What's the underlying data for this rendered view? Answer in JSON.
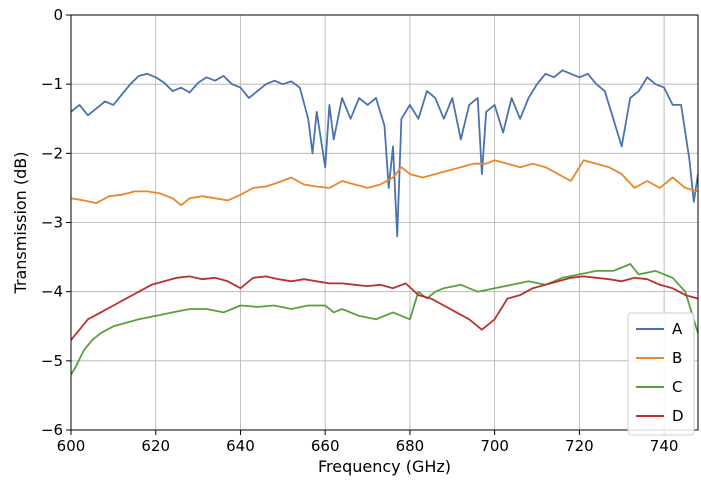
{
  "chart_data": {
    "type": "line",
    "title": "",
    "xlabel": "Frequency (GHz)",
    "ylabel": "Transmission (dB)",
    "xlim": [
      600,
      748
    ],
    "ylim": [
      -6,
      0
    ],
    "xticks": [
      600,
      620,
      640,
      660,
      680,
      700,
      720,
      740
    ],
    "yticks": [
      0,
      -1,
      -2,
      -3,
      -4,
      -5,
      -6
    ],
    "xtick_labels": [
      "600",
      "620",
      "640",
      "660",
      "680",
      "700",
      "720",
      "740"
    ],
    "ytick_labels": [
      "0",
      "−1",
      "−2",
      "−3",
      "−4",
      "−5",
      "−6"
    ],
    "grid": true,
    "legend_position": "lower-right",
    "series": [
      {
        "name": "A",
        "color": "#4a73ad",
        "x": [
          600,
          602,
          604,
          606,
          608,
          610,
          612,
          614,
          616,
          618,
          620,
          622,
          624,
          626,
          628,
          630,
          632,
          634,
          636,
          638,
          640,
          642,
          644,
          646,
          648,
          650,
          652,
          654,
          656,
          657,
          658,
          660,
          661,
          662,
          664,
          666,
          668,
          670,
          672,
          674,
          675,
          676,
          677,
          678,
          680,
          682,
          684,
          686,
          688,
          690,
          692,
          694,
          696,
          697,
          698,
          700,
          702,
          704,
          706,
          708,
          710,
          712,
          714,
          716,
          718,
          720,
          722,
          724,
          726,
          728,
          730,
          732,
          734,
          736,
          738,
          740,
          742,
          744,
          746,
          747,
          748
        ],
        "y": [
          -1.4,
          -1.3,
          -1.45,
          -1.35,
          -1.25,
          -1.3,
          -1.15,
          -1.0,
          -0.88,
          -0.85,
          -0.9,
          -0.98,
          -1.1,
          -1.05,
          -1.12,
          -0.98,
          -0.9,
          -0.95,
          -0.88,
          -1.0,
          -1.05,
          -1.2,
          -1.1,
          -1.0,
          -0.95,
          -1.0,
          -0.96,
          -1.05,
          -1.5,
          -2.0,
          -1.4,
          -2.2,
          -1.3,
          -1.8,
          -1.2,
          -1.5,
          -1.2,
          -1.3,
          -1.2,
          -1.6,
          -2.5,
          -1.9,
          -3.2,
          -1.5,
          -1.3,
          -1.5,
          -1.1,
          -1.2,
          -1.5,
          -1.2,
          -1.8,
          -1.3,
          -1.2,
          -2.3,
          -1.4,
          -1.3,
          -1.7,
          -1.2,
          -1.5,
          -1.2,
          -1.0,
          -0.85,
          -0.9,
          -0.8,
          -0.85,
          -0.9,
          -0.85,
          -1.0,
          -1.1,
          -1.5,
          -1.9,
          -1.2,
          -1.1,
          -0.9,
          -1.0,
          -1.05,
          -1.3,
          -1.3,
          -2.1,
          -2.7,
          -2.3
        ]
      },
      {
        "name": "B",
        "color": "#e8882a",
        "x": [
          600,
          603,
          606,
          609,
          612,
          615,
          618,
          621,
          624,
          626,
          628,
          631,
          634,
          637,
          640,
          643,
          646,
          649,
          652,
          655,
          658,
          661,
          664,
          667,
          670,
          673,
          676,
          678,
          680,
          683,
          686,
          689,
          692,
          695,
          698,
          700,
          703,
          706,
          709,
          712,
          715,
          718,
          721,
          724,
          727,
          730,
          733,
          736,
          739,
          742,
          745,
          748
        ],
        "y": [
          -2.65,
          -2.68,
          -2.72,
          -2.62,
          -2.6,
          -2.55,
          -2.55,
          -2.58,
          -2.65,
          -2.75,
          -2.65,
          -2.62,
          -2.65,
          -2.68,
          -2.6,
          -2.5,
          -2.48,
          -2.42,
          -2.35,
          -2.45,
          -2.48,
          -2.5,
          -2.4,
          -2.45,
          -2.5,
          -2.45,
          -2.35,
          -2.2,
          -2.3,
          -2.35,
          -2.3,
          -2.25,
          -2.2,
          -2.15,
          -2.15,
          -2.1,
          -2.15,
          -2.2,
          -2.15,
          -2.2,
          -2.3,
          -2.4,
          -2.1,
          -2.15,
          -2.2,
          -2.3,
          -2.5,
          -2.4,
          -2.5,
          -2.35,
          -2.5,
          -2.55
        ]
      },
      {
        "name": "C",
        "color": "#5aa03c",
        "x": [
          600,
          601,
          603,
          605,
          607,
          610,
          613,
          616,
          620,
          624,
          628,
          632,
          636,
          640,
          644,
          648,
          652,
          656,
          660,
          662,
          664,
          668,
          672,
          676,
          680,
          682,
          684,
          686,
          688,
          692,
          696,
          700,
          704,
          708,
          712,
          716,
          720,
          724,
          728,
          730,
          732,
          734,
          738,
          742,
          745,
          748
        ],
        "y": [
          -5.2,
          -5.1,
          -4.85,
          -4.7,
          -4.6,
          -4.5,
          -4.45,
          -4.4,
          -4.35,
          -4.3,
          -4.25,
          -4.25,
          -4.3,
          -4.2,
          -4.22,
          -4.2,
          -4.25,
          -4.2,
          -4.2,
          -4.3,
          -4.25,
          -4.35,
          -4.4,
          -4.3,
          -4.4,
          -4.0,
          -4.1,
          -4.0,
          -3.95,
          -3.9,
          -4.0,
          -3.95,
          -3.9,
          -3.85,
          -3.9,
          -3.8,
          -3.75,
          -3.7,
          -3.7,
          -3.65,
          -3.6,
          -3.75,
          -3.7,
          -3.8,
          -4.0,
          -4.6
        ]
      },
      {
        "name": "D",
        "color": "#b83232",
        "x": [
          600,
          602,
          604,
          607,
          610,
          613,
          616,
          619,
          622,
          625,
          628,
          631,
          634,
          637,
          640,
          643,
          646,
          649,
          652,
          655,
          658,
          661,
          664,
          667,
          670,
          673,
          676,
          679,
          682,
          685,
          688,
          691,
          694,
          697,
          700,
          703,
          706,
          709,
          712,
          715,
          718,
          721,
          724,
          727,
          730,
          733,
          736,
          739,
          742,
          745,
          748
        ],
        "y": [
          -4.7,
          -4.55,
          -4.4,
          -4.3,
          -4.2,
          -4.1,
          -4.0,
          -3.9,
          -3.85,
          -3.8,
          -3.78,
          -3.82,
          -3.8,
          -3.85,
          -3.95,
          -3.8,
          -3.78,
          -3.82,
          -3.85,
          -3.82,
          -3.85,
          -3.88,
          -3.88,
          -3.9,
          -3.92,
          -3.9,
          -3.95,
          -3.88,
          -4.05,
          -4.1,
          -4.2,
          -4.3,
          -4.4,
          -4.55,
          -4.4,
          -4.1,
          -4.05,
          -3.95,
          -3.9,
          -3.85,
          -3.8,
          -3.78,
          -3.8,
          -3.82,
          -3.85,
          -3.8,
          -3.82,
          -3.9,
          -3.95,
          -4.05,
          -4.1
        ]
      }
    ]
  }
}
